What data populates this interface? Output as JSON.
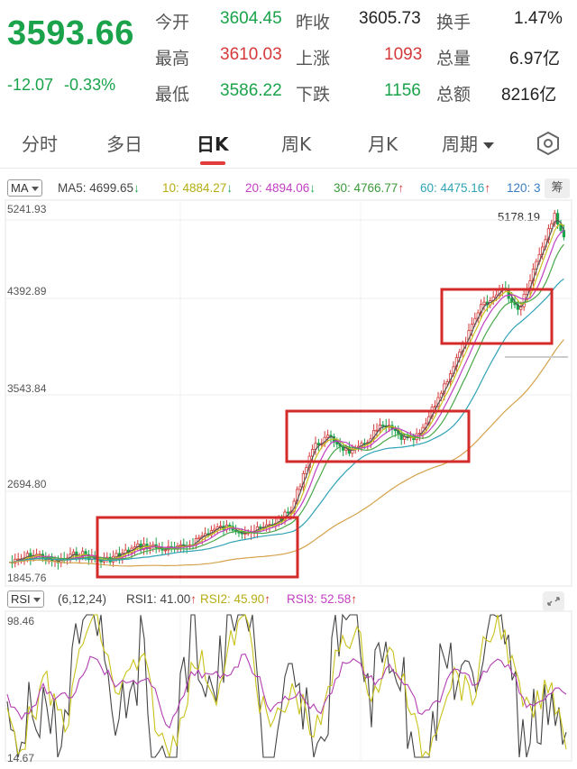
{
  "header": {
    "price": "3593.66",
    "change": "-12.07",
    "change_pct": "-0.33%",
    "stats": {
      "open_label": "今开",
      "open": "3604.45",
      "prev_close_label": "昨收",
      "prev_close": "3605.73",
      "turnover_label": "换手",
      "turnover": "1.47%",
      "high_label": "最高",
      "high": "3610.03",
      "up_label": "上涨",
      "up": "1093",
      "volume_label": "总量",
      "volume": "6.97亿",
      "low_label": "最低",
      "low": "3586.22",
      "down_label": "下跌",
      "down": "1156",
      "amount_label": "总额",
      "amount": "8216亿"
    }
  },
  "tabs": {
    "items": [
      "分时",
      "多日",
      "日K",
      "周K",
      "月K",
      "周期"
    ],
    "active": "日K"
  },
  "ma_bar": {
    "button": "MA",
    "ma5": "MA5: 4699.65",
    "ma5_arrow": "↓",
    "ma10": "10: 4884.27",
    "ma10_arrow": "↓",
    "ma20": "20: 4894.06",
    "ma20_arrow": "↓",
    "ma30": "30: 4766.77",
    "ma30_arrow": "↑",
    "ma60": "60: 4475.16",
    "ma60_arrow": "↑",
    "ma120": "120: 3",
    "chip": "筹"
  },
  "price_axis": {
    "labels": [
      "5241.93",
      "4392.89",
      "3543.84",
      "2694.80",
      "1845.76"
    ],
    "max_label": "5178.19"
  },
  "rsi_bar": {
    "button": "RSI",
    "params": "(6,12,24)",
    "rsi1": "RSI1: 41.00",
    "rsi1_arrow": "↑",
    "rsi2": "RSI2: 45.90",
    "rsi2_arrow": "↑",
    "rsi3": "RSI3: 52.58",
    "rsi3_arrow": "↑"
  },
  "rsi_axis": {
    "max": "98.46",
    "min": "14.67"
  },
  "colors": {
    "down": "#1aa34a",
    "up": "#d43a3a",
    "ma5": "#555555",
    "ma10": "#c9c21a",
    "ma20": "#c23fc2",
    "ma30": "#4aa84a",
    "ma60": "#2fa3b5",
    "ma120": "#d4a24a",
    "highlight_box": "#d42a2a"
  }
}
